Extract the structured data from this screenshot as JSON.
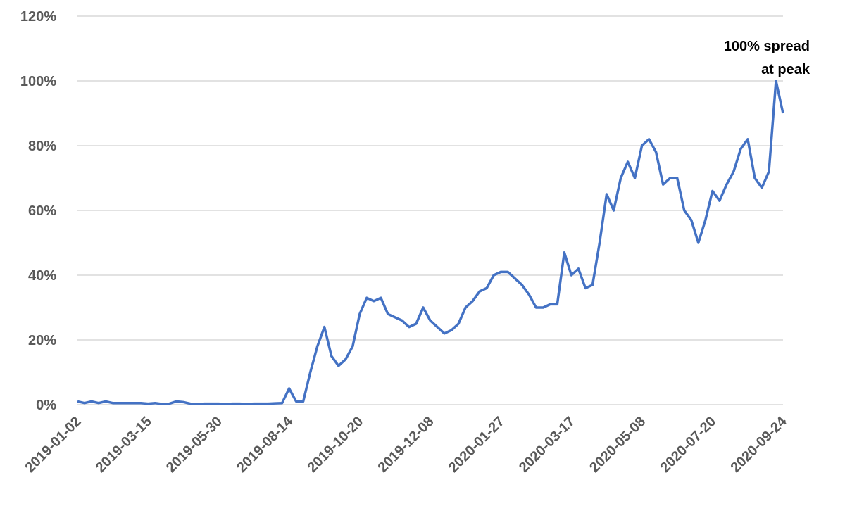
{
  "chart_data": {
    "type": "line",
    "annotation": [
      "100% spread",
      "at peak"
    ],
    "categories": [
      "2019-01-02",
      null,
      null,
      null,
      null,
      null,
      null,
      null,
      null,
      null,
      "2019-03-15",
      null,
      null,
      null,
      null,
      null,
      null,
      null,
      null,
      null,
      "2019-05-30",
      null,
      null,
      null,
      null,
      null,
      null,
      null,
      null,
      null,
      "2019-08-14",
      null,
      null,
      null,
      null,
      null,
      null,
      null,
      null,
      null,
      "2019-10-20",
      null,
      null,
      null,
      null,
      null,
      null,
      null,
      null,
      null,
      "2019-12-08",
      null,
      null,
      null,
      null,
      null,
      null,
      null,
      null,
      null,
      "2020-01-27",
      null,
      null,
      null,
      null,
      null,
      null,
      null,
      null,
      null,
      "2020-03-17",
      null,
      null,
      null,
      null,
      null,
      null,
      null,
      null,
      null,
      "2020-05-08",
      null,
      null,
      null,
      null,
      null,
      null,
      null,
      null,
      null,
      "2020-07-20",
      null,
      null,
      null,
      null,
      null,
      null,
      null,
      null,
      null,
      "2020-09-24"
    ],
    "values": [
      1,
      0.5,
      1,
      0.5,
      1,
      0.5,
      0.5,
      0.5,
      0.5,
      0.5,
      0.3,
      0.5,
      0.2,
      0.3,
      1,
      0.8,
      0.3,
      0.2,
      0.3,
      0.3,
      0.3,
      0.2,
      0.3,
      0.3,
      0.2,
      0.3,
      0.3,
      0.3,
      0.4,
      0.5,
      5,
      1,
      1,
      10,
      18,
      24,
      15,
      12,
      14,
      18,
      28,
      33,
      32,
      33,
      28,
      27,
      26,
      24,
      25,
      30,
      26,
      24,
      22,
      23,
      25,
      30,
      32,
      35,
      36,
      40,
      41,
      41,
      39,
      37,
      34,
      30,
      30,
      31,
      31,
      47,
      40,
      42,
      36,
      37,
      50,
      65,
      60,
      70,
      75,
      70,
      80,
      82,
      78,
      68,
      70,
      70,
      60,
      57,
      50,
      57,
      66,
      63,
      68,
      72,
      79,
      82,
      70,
      67,
      72,
      100,
      90
    ],
    "color": "#4472c4",
    "ylim": [
      0,
      120
    ],
    "yticks": [
      {
        "value": 0,
        "label": "0%"
      },
      {
        "value": 20,
        "label": "20%"
      },
      {
        "value": 40,
        "label": "40%"
      },
      {
        "value": 60,
        "label": "60%"
      },
      {
        "value": 80,
        "label": "80%"
      },
      {
        "value": 100,
        "label": "100%"
      },
      {
        "value": 120,
        "label": "120%"
      }
    ],
    "grid": true
  }
}
